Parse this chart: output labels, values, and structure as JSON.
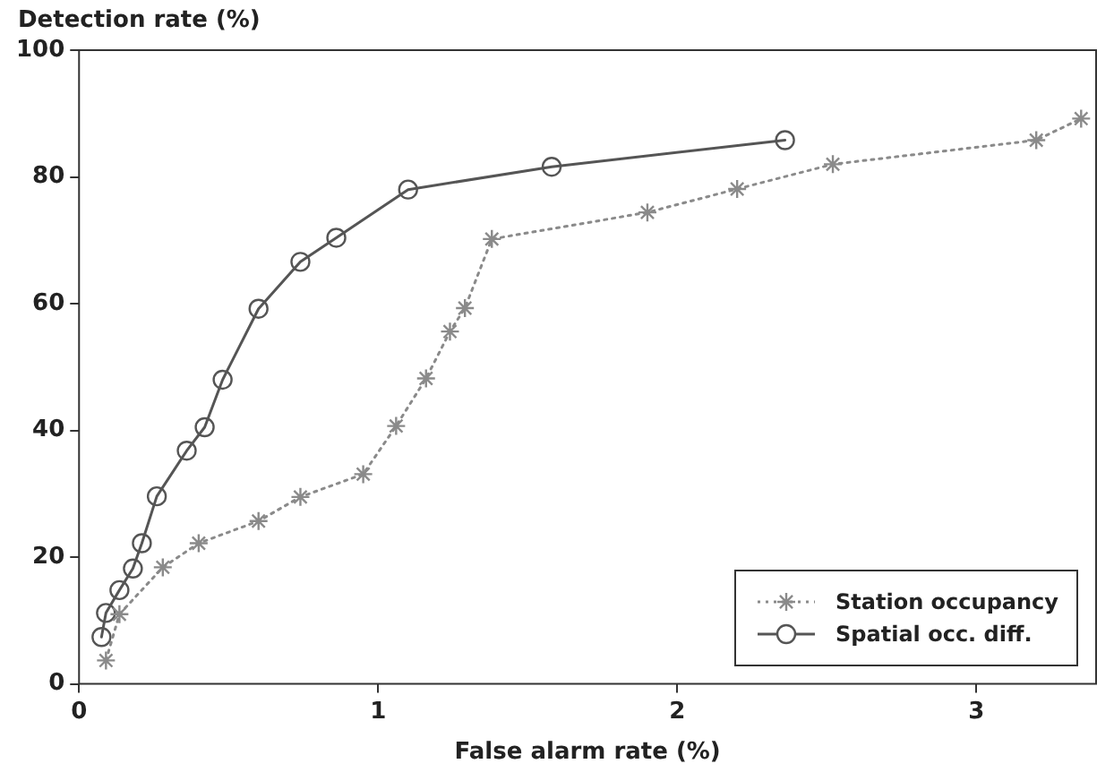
{
  "chart_data": {
    "type": "line",
    "ylabel": "Detection rate (%)",
    "xlabel": "False alarm rate (%)",
    "xlim": [
      0,
      3.4
    ],
    "xticks": [
      0,
      1,
      2,
      3
    ],
    "ylim": [
      0,
      100
    ],
    "yticks": [
      0,
      20,
      40,
      60,
      80,
      100
    ],
    "grid": false,
    "legend": "bottom right",
    "series": [
      {
        "name": "Station occupancy",
        "color": "#8a8a8a",
        "marker": "cross",
        "line_style": "dotted",
        "x": [
          0.09,
          0.135,
          0.28,
          0.4,
          0.6,
          0.74,
          0.95,
          1.06,
          1.16,
          1.24,
          1.29,
          1.38,
          1.9,
          2.2,
          2.52,
          3.2,
          3.35
        ],
        "values": [
          3.7,
          11,
          18.4,
          22.2,
          25.7,
          29.5,
          33.1,
          40.7,
          48.2,
          55.6,
          59.3,
          70.2,
          74.4,
          78.1,
          82,
          85.8,
          89.2
        ]
      },
      {
        "name": "Spatial occ. diff.",
        "color": "#555555",
        "marker": "circle",
        "line_style": "solid",
        "x": [
          0.075,
          0.09,
          0.135,
          0.18,
          0.21,
          0.26,
          0.36,
          0.42,
          0.48,
          0.6,
          0.74,
          0.86,
          1.1,
          1.58,
          2.36
        ],
        "values": [
          7.4,
          11.2,
          14.8,
          18.2,
          22.2,
          29.6,
          36.8,
          40.5,
          48,
          59.2,
          66.6,
          70.4,
          78,
          81.6,
          85.8
        ]
      }
    ]
  }
}
